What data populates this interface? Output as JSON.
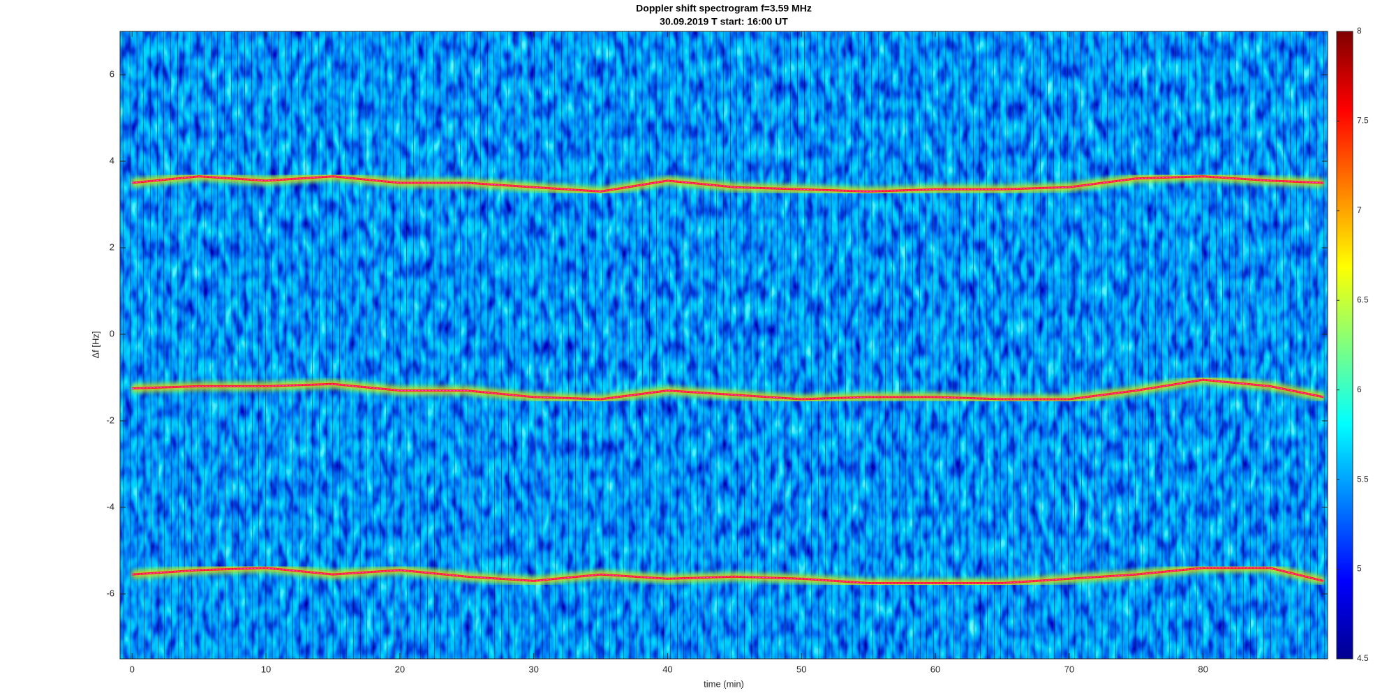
{
  "chart_data": {
    "type": "spectrogram",
    "title": "Doppler shift spectrogram f=3.59 MHz",
    "subtitle": "30.09.2019    T start: 16:00 UT",
    "x_label": "time (min)",
    "y_label": "Δf [Hz]",
    "xlim": [
      -0.9,
      89.3
    ],
    "xticks": [
      0,
      10,
      20,
      30,
      40,
      50,
      60,
      70,
      80
    ],
    "ylim": [
      -7.5,
      7
    ],
    "yticks": [
      -6,
      -4,
      -2,
      0,
      2,
      4,
      6
    ],
    "clim": [
      4.5,
      8
    ],
    "cticks": [
      4.5,
      5,
      5.5,
      6,
      6.5,
      7,
      7.5,
      8
    ],
    "x": [
      0,
      5,
      10,
      15,
      20,
      25,
      30,
      35,
      40,
      45,
      50,
      55,
      60,
      65,
      70,
      75,
      80,
      85,
      89
    ],
    "series": [
      {
        "color": "#ff2020",
        "values": [
          3.5,
          3.65,
          3.55,
          3.65,
          3.5,
          3.5,
          3.4,
          3.3,
          3.55,
          3.4,
          3.35,
          3.3,
          3.35,
          3.35,
          3.4,
          3.6,
          3.65,
          3.55,
          3.5
        ]
      },
      {
        "color": "#ff2020",
        "values": [
          -1.25,
          -1.2,
          -1.2,
          -1.15,
          -1.3,
          -1.3,
          -1.45,
          -1.5,
          -1.3,
          -1.4,
          -1.5,
          -1.45,
          -1.45,
          -1.5,
          -1.5,
          -1.3,
          -1.05,
          -1.2,
          -1.45
        ]
      },
      {
        "color": "#ff2020",
        "values": [
          -5.55,
          -5.45,
          -5.4,
          -5.55,
          -5.45,
          -5.6,
          -5.7,
          -5.55,
          -5.65,
          -5.6,
          -5.65,
          -5.75,
          -5.75,
          -5.75,
          -5.65,
          -5.55,
          -5.4,
          -5.4,
          -5.7
        ]
      }
    ]
  }
}
